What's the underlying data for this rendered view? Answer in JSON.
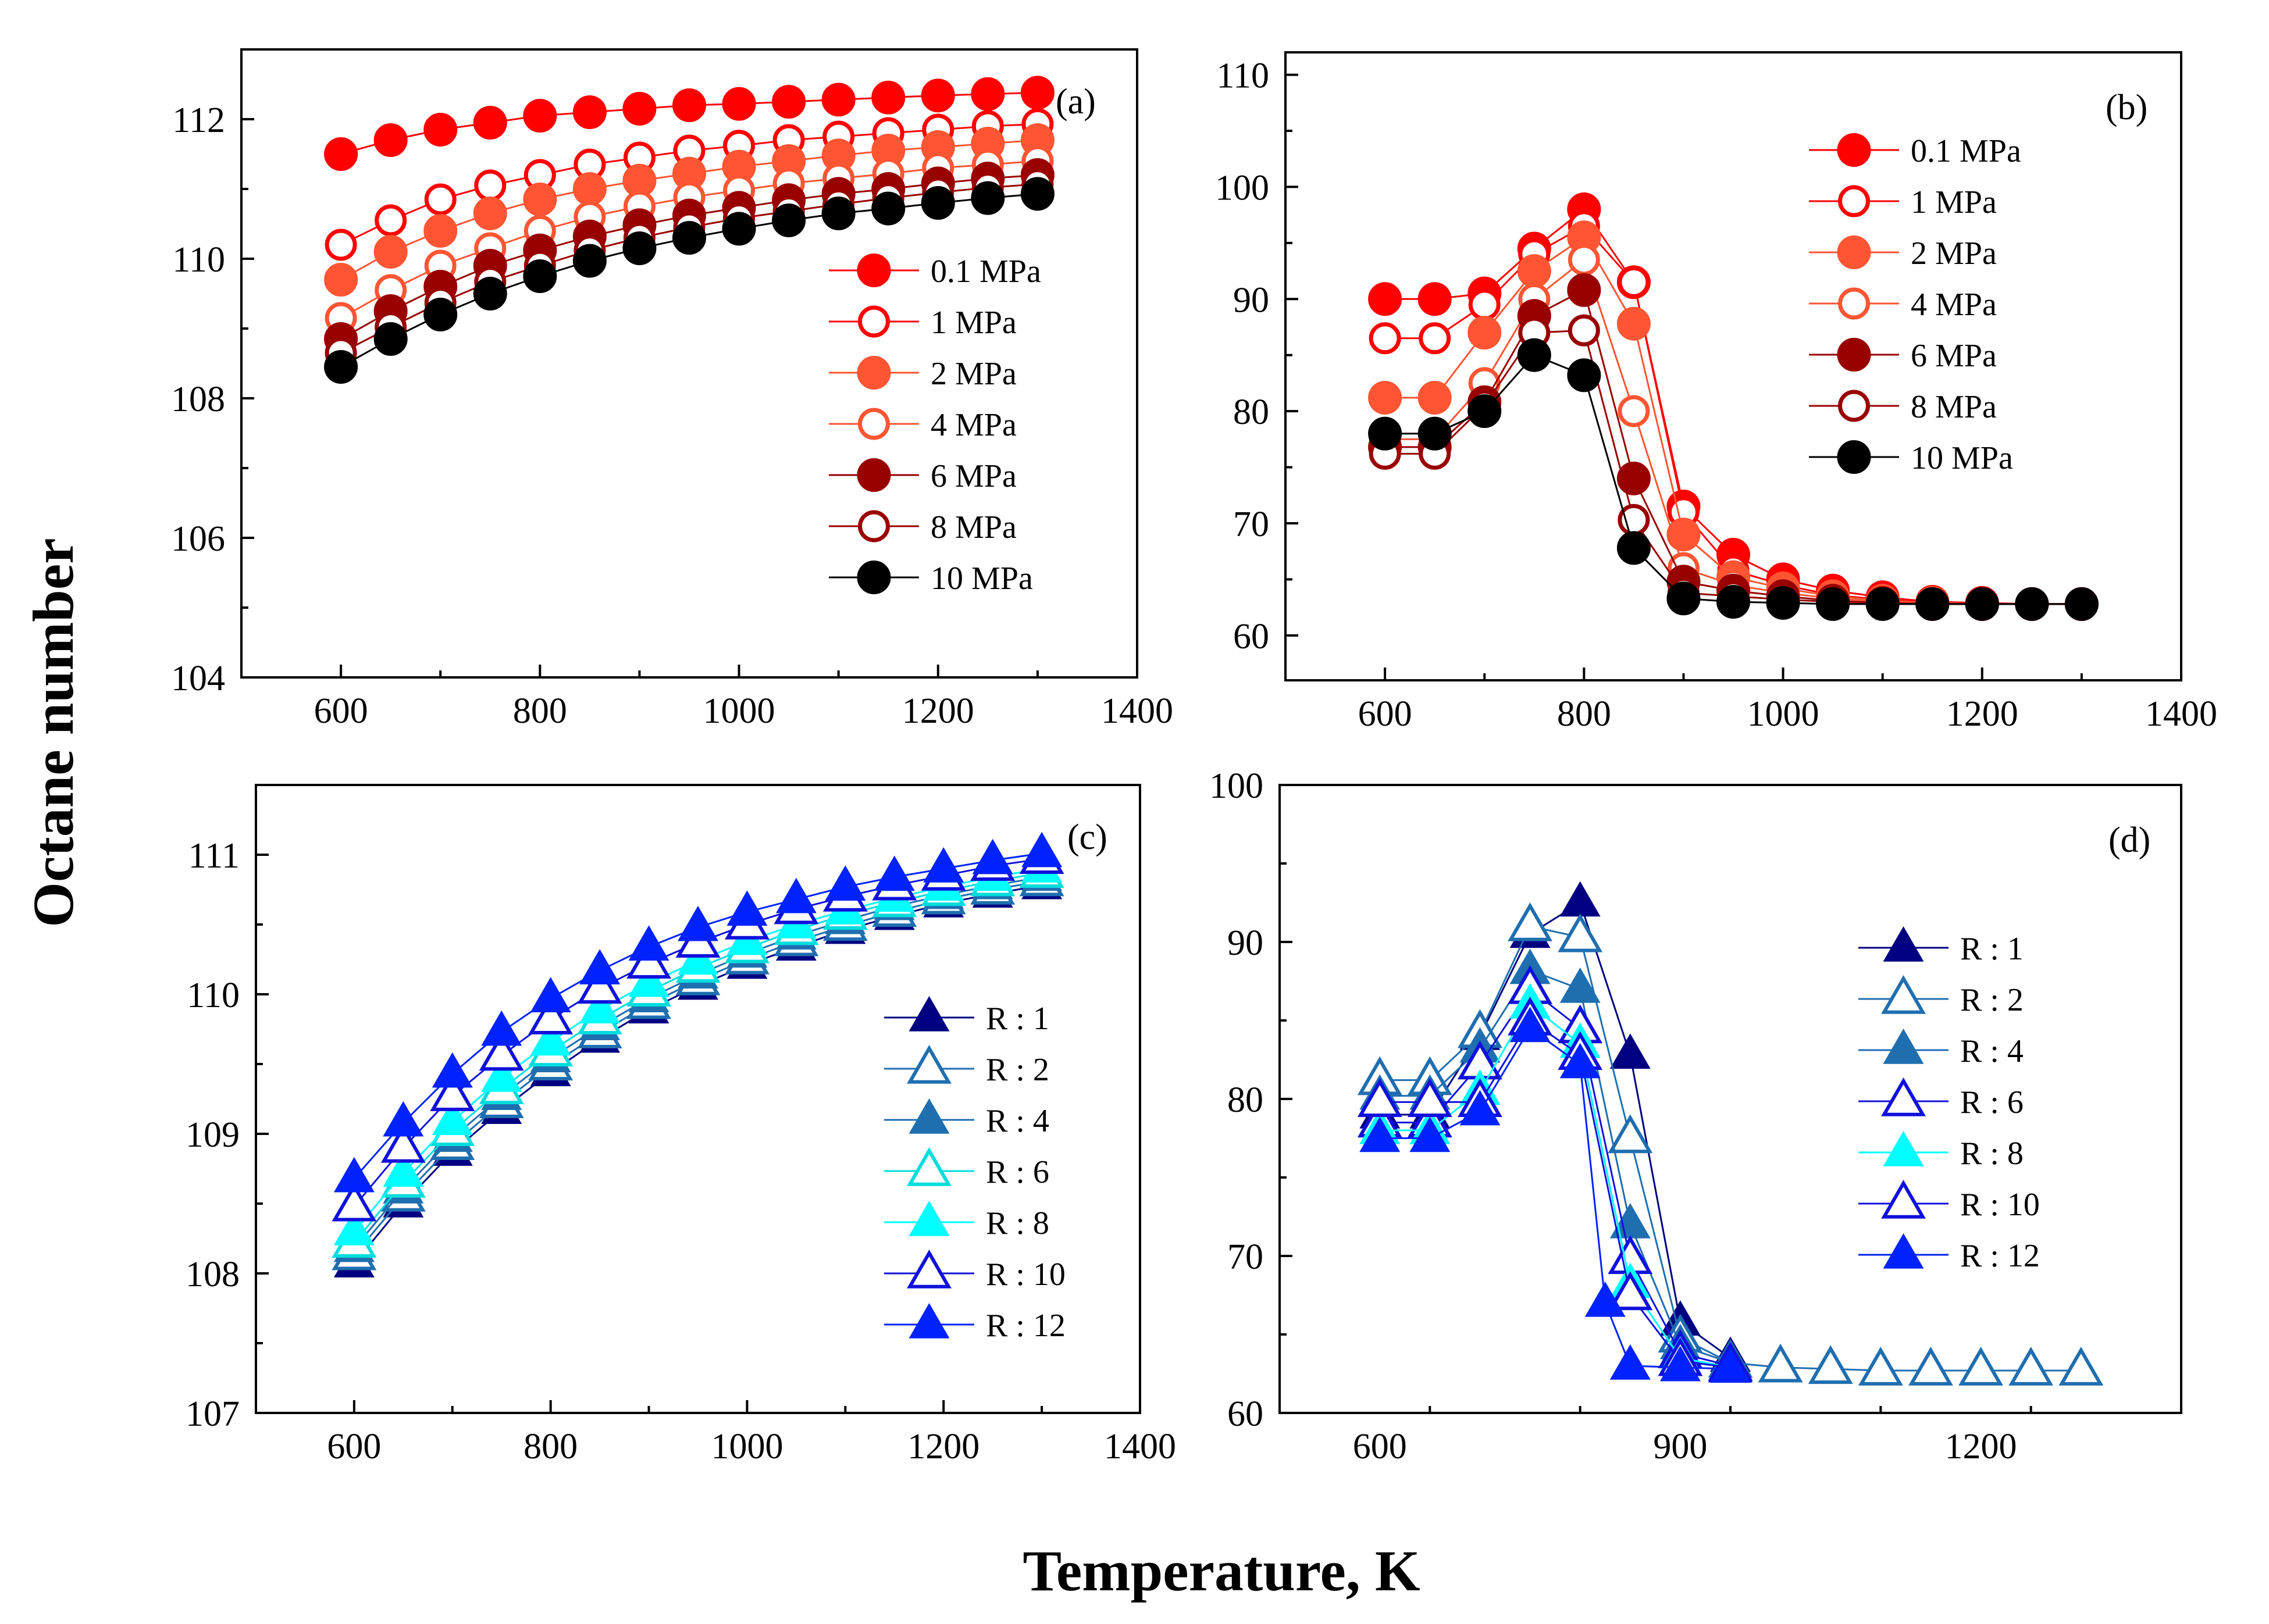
{
  "figure": {
    "ylabel": "Octane number",
    "xlabel": "Temperature, K"
  },
  "chart_data": [
    {
      "id": "a",
      "panel_label": "(a)",
      "type": "line",
      "xlim": [
        500,
        1400
      ],
      "ylim": [
        104,
        113
      ],
      "xticks": [
        600,
        800,
        1000,
        1200,
        1400
      ],
      "yticks": [
        104,
        106,
        108,
        110,
        112
      ],
      "legend_position": "center-right",
      "x": [
        600,
        650,
        700,
        750,
        800,
        850,
        900,
        950,
        1000,
        1050,
        1100,
        1150,
        1200,
        1250,
        1300
      ],
      "series": [
        {
          "name": "0.1 MPa",
          "color": "#ff0000",
          "marker": "circle",
          "filled": true,
          "values": [
            111.5,
            111.7,
            111.85,
            111.95,
            112.05,
            112.1,
            112.15,
            112.2,
            112.22,
            112.25,
            112.28,
            112.31,
            112.34,
            112.36,
            112.38
          ]
        },
        {
          "name": "1 MPa",
          "color": "#ff0000",
          "marker": "circle",
          "filled": false,
          "values": [
            110.2,
            110.55,
            110.85,
            111.05,
            111.2,
            111.35,
            111.45,
            111.55,
            111.62,
            111.7,
            111.75,
            111.8,
            111.85,
            111.9,
            111.93
          ]
        },
        {
          "name": "2 MPa",
          "color": "#ff5533",
          "marker": "circle",
          "filled": true,
          "values": [
            109.7,
            110.1,
            110.4,
            110.65,
            110.85,
            111.0,
            111.12,
            111.22,
            111.32,
            111.4,
            111.48,
            111.55,
            111.6,
            111.65,
            111.7
          ]
        },
        {
          "name": "4 MPa",
          "color": "#ff5533",
          "marker": "circle",
          "filled": false,
          "values": [
            109.15,
            109.55,
            109.9,
            110.15,
            110.4,
            110.6,
            110.75,
            110.88,
            110.98,
            111.08,
            111.15,
            111.22,
            111.3,
            111.35,
            111.4
          ]
        },
        {
          "name": "6 MPa",
          "color": "#990000",
          "marker": "circle",
          "filled": true,
          "values": [
            108.85,
            109.25,
            109.6,
            109.9,
            110.12,
            110.32,
            110.48,
            110.62,
            110.73,
            110.84,
            110.93,
            111.0,
            111.08,
            111.15,
            111.2
          ]
        },
        {
          "name": "8 MPa",
          "color": "#990000",
          "marker": "circle",
          "filled": false,
          "values": [
            108.65,
            109.02,
            109.37,
            109.67,
            109.9,
            110.12,
            110.3,
            110.45,
            110.58,
            110.68,
            110.78,
            110.87,
            110.95,
            111.02,
            111.07
          ]
        },
        {
          "name": "10 MPa",
          "color": "#000000",
          "marker": "circle",
          "filled": true,
          "values": [
            108.45,
            108.85,
            109.2,
            109.5,
            109.75,
            109.97,
            110.15,
            110.3,
            110.43,
            110.55,
            110.65,
            110.72,
            110.8,
            110.87,
            110.93
          ]
        }
      ]
    },
    {
      "id": "b",
      "panel_label": "(b)",
      "type": "line",
      "xlim": [
        500,
        1400
      ],
      "ylim": [
        56,
        112
      ],
      "xticks": [
        600,
        800,
        1000,
        1200,
        1400
      ],
      "yticks": [
        60,
        70,
        80,
        90,
        100,
        110
      ],
      "legend_position": "top-right",
      "x": [
        600,
        650,
        700,
        750,
        800,
        850,
        900,
        950,
        1000,
        1050,
        1100,
        1150,
        1200,
        1250,
        1300
      ],
      "series": [
        {
          "name": "0.1 MPa",
          "color": "#ff0000",
          "marker": "circle",
          "filled": true,
          "values": [
            90.0,
            90.0,
            90.5,
            94.5,
            98.0,
            91.5,
            71.5,
            67.2,
            65.0,
            64.0,
            63.4,
            63.0,
            62.9,
            62.8,
            62.8
          ]
        },
        {
          "name": "1 MPa",
          "color": "#ff0000",
          "marker": "circle",
          "filled": false,
          "values": [
            86.5,
            86.5,
            89.5,
            94.0,
            96.5,
            91.5,
            71.0,
            65.8,
            64.5,
            63.6,
            63.2,
            62.9,
            62.8,
            62.8,
            62.8
          ]
        },
        {
          "name": "2 MPa",
          "color": "#ff5533",
          "marker": "circle",
          "filled": true,
          "values": [
            81.2,
            81.2,
            87.0,
            92.5,
            95.5,
            87.8,
            69.0,
            65.2,
            64.2,
            63.5,
            63.1,
            62.9,
            62.8,
            62.8,
            62.8
          ]
        },
        {
          "name": "4 MPa",
          "color": "#ff5533",
          "marker": "circle",
          "filled": false,
          "values": [
            77.5,
            77.5,
            82.5,
            90.0,
            93.5,
            80.0,
            66.0,
            64.5,
            63.8,
            63.3,
            63.0,
            62.9,
            62.8,
            62.8,
            62.8
          ]
        },
        {
          "name": "6 MPa",
          "color": "#990000",
          "marker": "circle",
          "filled": true,
          "values": [
            76.8,
            76.8,
            80.8,
            88.5,
            90.8,
            74.0,
            64.8,
            64.0,
            63.5,
            63.1,
            62.9,
            62.8,
            62.8,
            62.8,
            62.8
          ]
        },
        {
          "name": "8 MPa",
          "color": "#990000",
          "marker": "circle",
          "filled": false,
          "values": [
            76.2,
            76.2,
            80.5,
            87.0,
            87.2,
            70.3,
            63.8,
            63.5,
            63.2,
            63.0,
            62.9,
            62.8,
            62.8,
            62.8,
            62.8
          ]
        },
        {
          "name": "10 MPa",
          "color": "#000000",
          "marker": "circle",
          "filled": true,
          "values": [
            78.0,
            78.0,
            80.0,
            85.0,
            83.2,
            67.8,
            63.3,
            63.0,
            62.9,
            62.8,
            62.8,
            62.8,
            62.8,
            62.8,
            62.8
          ]
        }
      ]
    },
    {
      "id": "c",
      "panel_label": "(c)",
      "type": "line",
      "xlim": [
        500,
        1400
      ],
      "ylim": [
        107,
        111.5
      ],
      "xticks": [
        600,
        800,
        1000,
        1200,
        1400
      ],
      "yticks": [
        107,
        108,
        109,
        110,
        111
      ],
      "legend_position": "center-right",
      "x": [
        600,
        650,
        700,
        750,
        800,
        850,
        900,
        950,
        1000,
        1050,
        1100,
        1150,
        1200,
        1250,
        1300
      ],
      "series": [
        {
          "name": "R : 1",
          "color": "#000080",
          "marker": "triangle",
          "filled": true,
          "values": [
            108.07,
            108.5,
            108.87,
            109.17,
            109.44,
            109.68,
            109.89,
            110.06,
            110.21,
            110.34,
            110.46,
            110.56,
            110.65,
            110.72,
            110.78
          ]
        },
        {
          "name": "R : 2",
          "color": "#1f6eb0",
          "marker": "triangle",
          "filled": false,
          "values": [
            108.13,
            108.55,
            108.92,
            109.22,
            109.49,
            109.72,
            109.93,
            110.1,
            110.25,
            110.38,
            110.49,
            110.59,
            110.68,
            110.75,
            110.81
          ]
        },
        {
          "name": "R : 4",
          "color": "#1f6eb0",
          "marker": "triangle",
          "filled": true,
          "values": [
            108.18,
            108.6,
            108.97,
            109.27,
            109.54,
            109.77,
            109.97,
            110.14,
            110.29,
            110.42,
            110.53,
            110.63,
            110.71,
            110.78,
            110.84
          ]
        },
        {
          "name": "R : 6",
          "color": "#00dddd",
          "marker": "triangle",
          "filled": false,
          "values": [
            108.22,
            108.65,
            109.02,
            109.32,
            109.59,
            109.82,
            110.02,
            110.19,
            110.33,
            110.46,
            110.57,
            110.66,
            110.74,
            110.81,
            110.87
          ]
        },
        {
          "name": "R : 8",
          "color": "#00ffff",
          "marker": "triangle",
          "filled": true,
          "values": [
            108.3,
            108.72,
            109.09,
            109.4,
            109.66,
            109.89,
            110.08,
            110.24,
            110.38,
            110.5,
            110.6,
            110.69,
            110.77,
            110.84,
            110.9
          ]
        },
        {
          "name": "R : 10",
          "color": "#1010dd",
          "marker": "triangle",
          "filled": false,
          "values": [
            108.48,
            108.9,
            109.27,
            109.56,
            109.82,
            110.04,
            110.22,
            110.37,
            110.5,
            110.61,
            110.7,
            110.78,
            110.85,
            110.92,
            110.97
          ]
        },
        {
          "name": "R : 12",
          "color": "#0022ff",
          "marker": "triangle",
          "filled": true,
          "values": [
            108.68,
            109.08,
            109.43,
            109.73,
            109.97,
            110.17,
            110.34,
            110.48,
            110.59,
            110.68,
            110.77,
            110.84,
            110.9,
            110.96,
            111.01
          ]
        }
      ]
    },
    {
      "id": "d",
      "panel_label": "(d)",
      "type": "line",
      "xlim": [
        500,
        1400
      ],
      "ylim": [
        60,
        100
      ],
      "xticks": [
        600,
        900,
        1200
      ],
      "yticks": [
        60,
        70,
        80,
        90,
        100
      ],
      "legend_position": "center",
      "x": [
        600,
        650,
        700,
        750,
        800,
        850,
        900,
        950,
        1000,
        1050,
        1100,
        1150,
        1200,
        1250,
        1300
      ],
      "series": [
        {
          "name": "R : 1",
          "color": "#000080",
          "marker": "triangle",
          "filled": true,
          "x": [
            600,
            650,
            700,
            750,
            800,
            850,
            900,
            950
          ],
          "values": [
            79.0,
            79.0,
            84.0,
            90.5,
            92.5,
            82.8,
            65.8,
            63.5
          ]
        },
        {
          "name": "R : 2",
          "color": "#1f6eb0",
          "marker": "triangle",
          "filled": false,
          "values": [
            81.2,
            81.2,
            84.2,
            91.0,
            90.3,
            77.5,
            64.8,
            63.2,
            62.9,
            62.8,
            62.7,
            62.7,
            62.7,
            62.7,
            62.7
          ]
        },
        {
          "name": "R : 4",
          "color": "#1f6eb0",
          "marker": "triangle",
          "filled": true,
          "x": [
            600,
            650,
            700,
            750,
            800,
            850,
            900,
            950
          ],
          "values": [
            80.2,
            80.2,
            83.2,
            88.2,
            87.0,
            72.0,
            64.3,
            63.2
          ]
        },
        {
          "name": "R : 6",
          "color": "#1010dd",
          "marker": "triangle",
          "filled": false,
          "x": [
            600,
            650,
            700,
            750,
            800,
            850,
            900,
            950
          ],
          "values": [
            78.5,
            78.5,
            82.2,
            87.0,
            84.5,
            69.8,
            63.8,
            63.0
          ]
        },
        {
          "name": "R : 8",
          "color": "#00ffff",
          "marker": "triangle",
          "filled": true,
          "x": [
            600,
            650,
            700,
            750,
            800,
            850,
            900,
            950
          ],
          "values": [
            78.0,
            78.0,
            80.5,
            86.0,
            83.5,
            68.2,
            63.5,
            62.9
          ]
        },
        {
          "name": "R : 10",
          "color": "#1010dd",
          "marker": "triangle",
          "filled": false,
          "x": [
            600,
            650,
            700,
            750,
            800,
            850,
            900,
            950
          ],
          "values": [
            79.8,
            79.8,
            79.8,
            85.0,
            82.8,
            67.5,
            63.3,
            62.9
          ]
        },
        {
          "name": "R : 12",
          "color": "#0022ff",
          "marker": "triangle",
          "filled": true,
          "x": [
            600,
            650,
            700,
            750,
            800,
            825,
            850,
            900,
            950
          ],
          "values": [
            77.5,
            77.5,
            79.2,
            84.5,
            82.2,
            67.0,
            63.0,
            62.9,
            62.8
          ]
        }
      ]
    }
  ]
}
